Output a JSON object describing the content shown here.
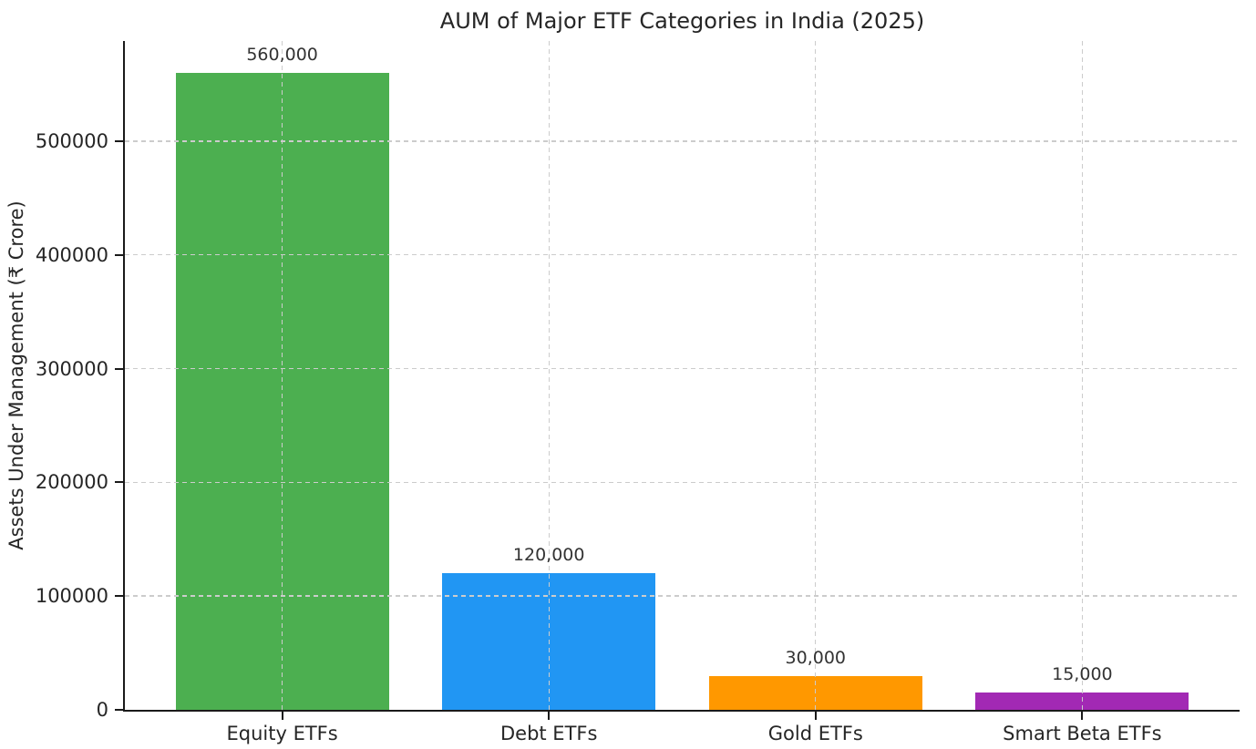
{
  "page": {
    "background_color": "#ffffff",
    "text_color": "#262626"
  },
  "chart_data": {
    "type": "bar",
    "title": "AUM of Major ETF Categories in India (2025)",
    "xlabel": "",
    "ylabel": "Assets Under Management (₹ Crore)",
    "categories": [
      "Equity ETFs",
      "Debt ETFs",
      "Gold ETFs",
      "Smart Beta ETFs"
    ],
    "values": [
      560000,
      120000,
      30000,
      15000
    ],
    "value_labels": [
      "560,000",
      "120,000",
      "30,000",
      "15,000"
    ],
    "bar_colors": [
      "#4caf50",
      "#2196f3",
      "#ff9800",
      "#a229b4"
    ],
    "ylim": [
      0,
      588000
    ],
    "yticks": [
      0,
      100000,
      200000,
      300000,
      400000,
      500000
    ],
    "ytick_labels": [
      "0",
      "100000",
      "200000",
      "300000",
      "400000",
      "500000"
    ],
    "legend": "none",
    "grid": "dashed, horizontal at yticks and vertical at bar centers, drawn above bars",
    "grid_color": "#cccccc",
    "spine_color": "#1a1a1a",
    "spines_visible": [
      "left",
      "bottom"
    ]
  }
}
